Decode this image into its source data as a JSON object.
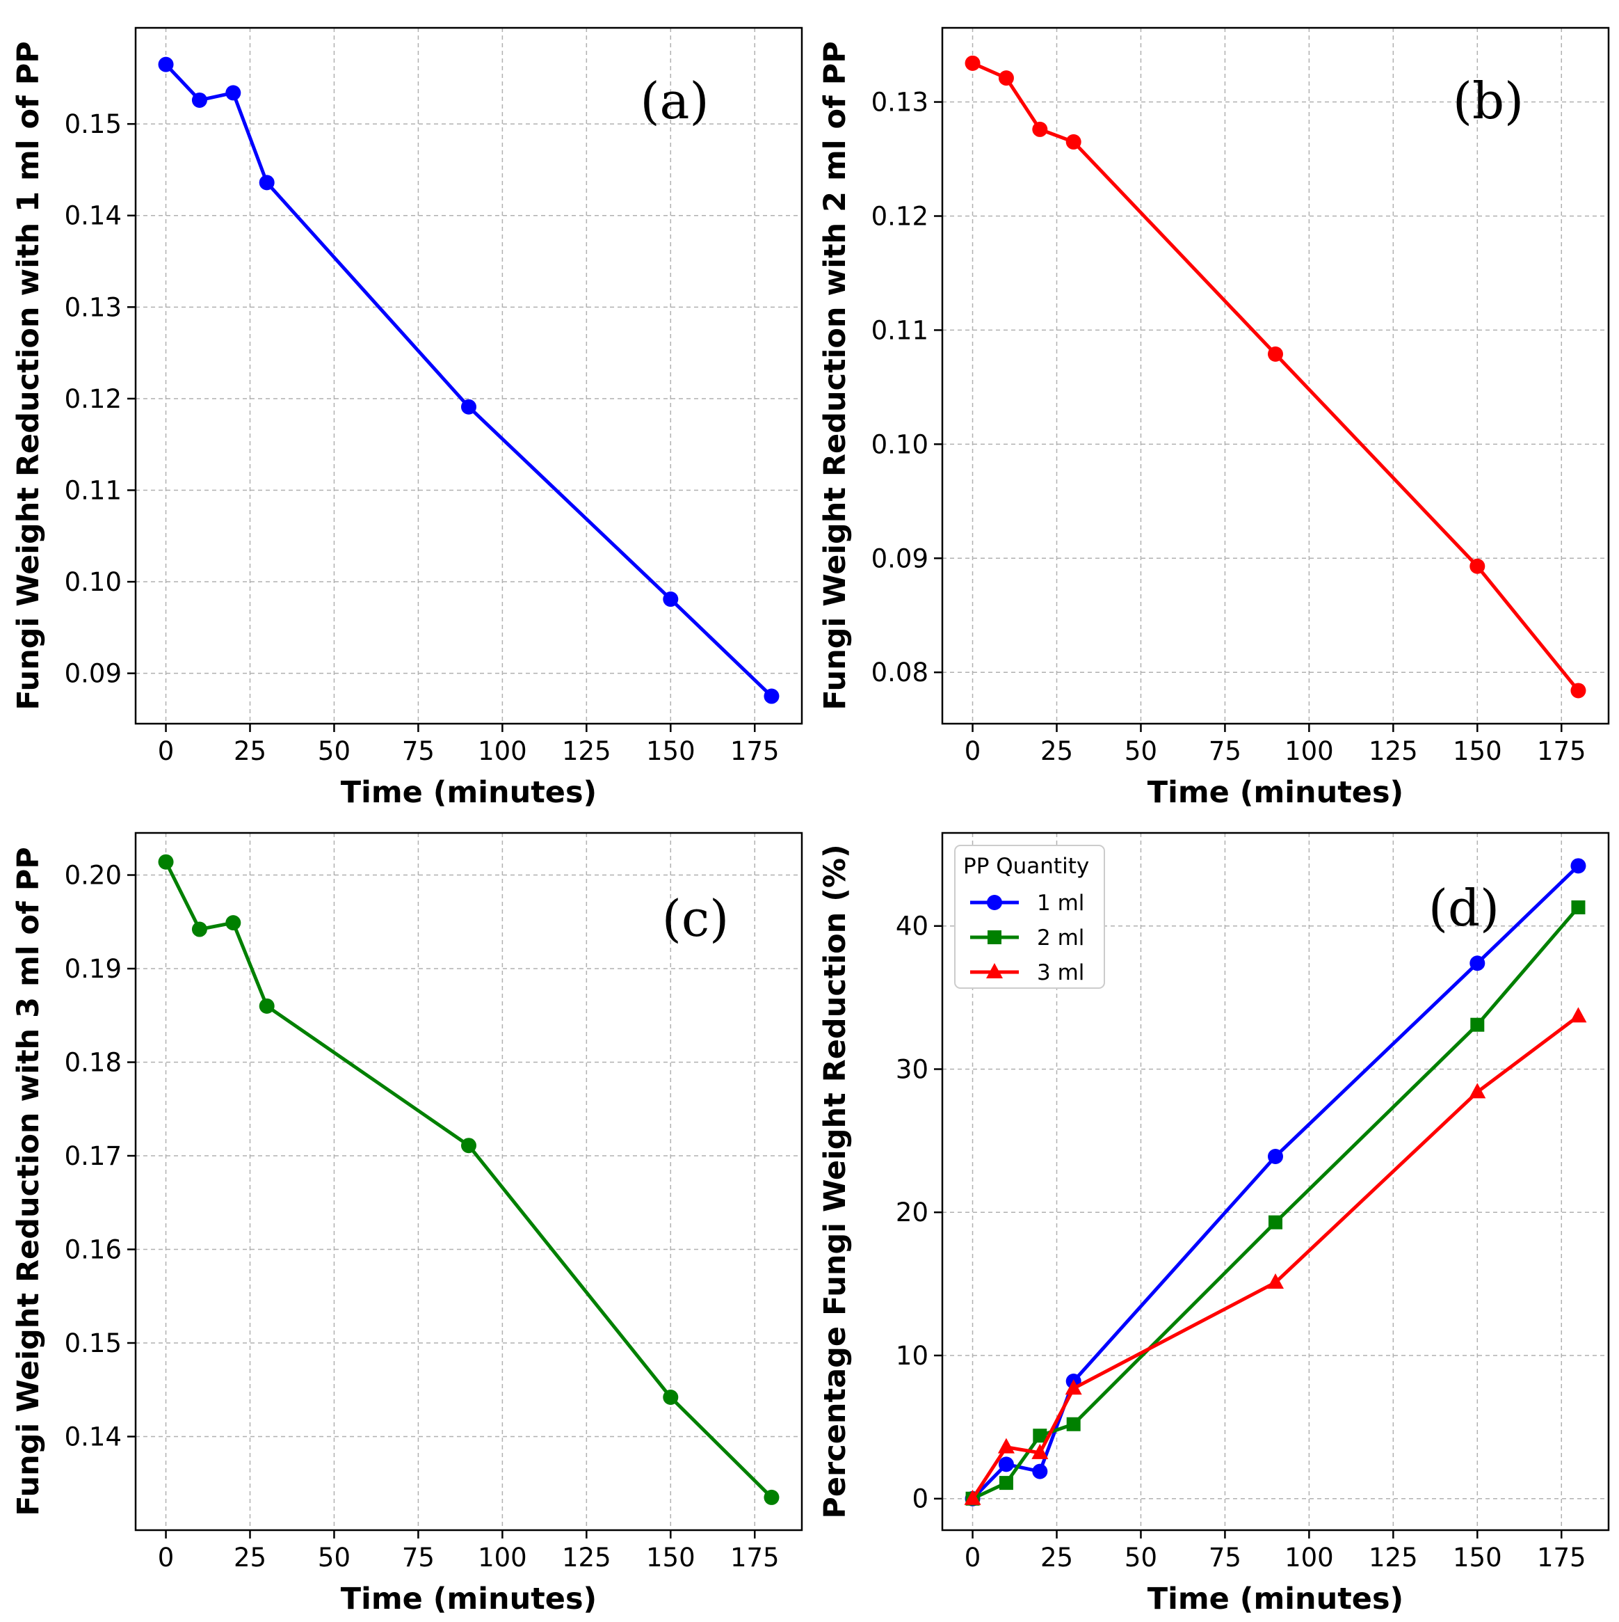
{
  "chart_data": [
    {
      "type": "line",
      "panel_label": "(a)",
      "xlabel": "Time (minutes)",
      "ylabel": "Fungi Weight Reduction with 1 ml of PP",
      "xlim": [
        -9,
        189
      ],
      "ylim": [
        0.0845,
        0.1605
      ],
      "xticks": [
        0,
        25,
        50,
        75,
        100,
        125,
        150,
        175
      ],
      "yticks": [
        0.09,
        0.1,
        0.11,
        0.12,
        0.13,
        0.14,
        0.15
      ],
      "ytick_labels": [
        "0.09",
        "0.10",
        "0.11",
        "0.12",
        "0.13",
        "0.14",
        "0.15"
      ],
      "grid": true,
      "series": [
        {
          "color": "#0000ff",
          "marker": "circle",
          "x": [
            0,
            10,
            20,
            30,
            90,
            150,
            180
          ],
          "y": [
            0.1565,
            0.1526,
            0.1534,
            0.1436,
            0.1191,
            0.0981,
            0.0875
          ]
        }
      ]
    },
    {
      "type": "line",
      "panel_label": "(b)",
      "xlabel": "Time (minutes)",
      "ylabel": "Fungi Weight Reduction with 2 ml of PP",
      "xlim": [
        -9,
        189
      ],
      "ylim": [
        0.0755,
        0.1365
      ],
      "xticks": [
        0,
        25,
        50,
        75,
        100,
        125,
        150,
        175
      ],
      "yticks": [
        0.08,
        0.09,
        0.1,
        0.11,
        0.12,
        0.13
      ],
      "ytick_labels": [
        "0.08",
        "0.09",
        "0.10",
        "0.11",
        "0.12",
        "0.13"
      ],
      "grid": true,
      "series": [
        {
          "color": "#ff0000",
          "marker": "circle",
          "x": [
            0,
            10,
            20,
            30,
            90,
            150,
            180
          ],
          "y": [
            0.1334,
            0.1321,
            0.1276,
            0.1265,
            0.1079,
            0.0893,
            0.0784
          ]
        }
      ]
    },
    {
      "type": "line",
      "panel_label": "(c)",
      "xlabel": "Time (minutes)",
      "ylabel": "Fungi Weight Reduction with 3 ml of PP",
      "xlim": [
        -9,
        189
      ],
      "ylim": [
        0.13,
        0.2045
      ],
      "xticks": [
        0,
        25,
        50,
        75,
        100,
        125,
        150,
        175
      ],
      "yticks": [
        0.14,
        0.15,
        0.16,
        0.17,
        0.18,
        0.19,
        0.2
      ],
      "ytick_labels": [
        "0.14",
        "0.15",
        "0.16",
        "0.17",
        "0.18",
        "0.19",
        "0.20"
      ],
      "grid": true,
      "series": [
        {
          "color": "#008000",
          "marker": "circle",
          "x": [
            0,
            10,
            20,
            30,
            90,
            150,
            180
          ],
          "y": [
            0.2014,
            0.1942,
            0.1949,
            0.186,
            0.1711,
            0.1442,
            0.1335
          ]
        }
      ]
    },
    {
      "type": "line",
      "panel_label": "(d)",
      "xlabel": "Time (minutes)",
      "ylabel": "Percentage Fungi Weight Reduction (%)",
      "xlim": [
        -9,
        189
      ],
      "ylim": [
        -2.2,
        46.5
      ],
      "xticks": [
        0,
        25,
        50,
        75,
        100,
        125,
        150,
        175
      ],
      "yticks": [
        0,
        10,
        20,
        30,
        40
      ],
      "ytick_labels": [
        "0",
        "10",
        "20",
        "30",
        "40"
      ],
      "grid": true,
      "legend": {
        "title": "PP Quantity",
        "position": "top-left"
      },
      "series": [
        {
          "name": "1 ml",
          "color": "#0000ff",
          "marker": "circle",
          "x": [
            0,
            10,
            20,
            30,
            90,
            150,
            180
          ],
          "y": [
            0,
            2.4,
            1.9,
            8.2,
            23.9,
            37.4,
            44.2
          ]
        },
        {
          "name": "2 ml",
          "color": "#008000",
          "marker": "square",
          "x": [
            0,
            10,
            20,
            30,
            90,
            150,
            180
          ],
          "y": [
            0,
            1.1,
            4.4,
            5.2,
            19.3,
            33.1,
            41.3
          ]
        },
        {
          "name": "3 ml",
          "color": "#ff0000",
          "marker": "triangle",
          "x": [
            0,
            10,
            20,
            30,
            90,
            150,
            180
          ],
          "y": [
            0,
            3.6,
            3.2,
            7.7,
            15.1,
            28.4,
            33.7
          ]
        }
      ]
    }
  ]
}
